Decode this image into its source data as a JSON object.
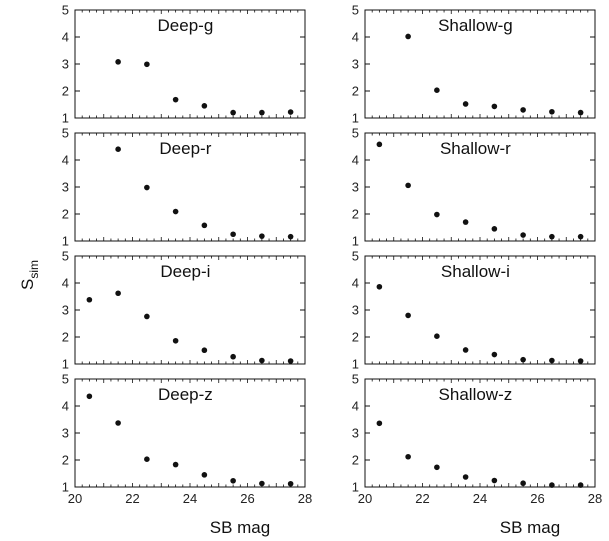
{
  "chart_data": [
    {
      "type": "scatter",
      "panel": "Deep-g",
      "x": [
        21.5,
        22.5,
        23.5,
        24.5,
        25.5,
        26.5,
        27.5
      ],
      "y": [
        3.08,
        2.99,
        1.68,
        1.45,
        1.2,
        1.2,
        1.22
      ],
      "xlim": [
        20,
        28
      ],
      "ylim": [
        1,
        5
      ]
    },
    {
      "type": "scatter",
      "panel": "Shallow-g",
      "x": [
        21.5,
        22.5,
        23.5,
        24.5,
        25.5,
        26.5,
        27.5
      ],
      "y": [
        4.02,
        2.03,
        1.52,
        1.43,
        1.3,
        1.23,
        1.2
      ],
      "xlim": [
        20,
        28
      ],
      "ylim": [
        1,
        5
      ]
    },
    {
      "type": "scatter",
      "panel": "Deep-r",
      "x": [
        21.5,
        22.5,
        23.5,
        24.5,
        25.5,
        26.5,
        27.5
      ],
      "y": [
        4.4,
        2.98,
        2.09,
        1.58,
        1.25,
        1.18,
        1.16
      ],
      "xlim": [
        20,
        28
      ],
      "ylim": [
        1,
        5
      ]
    },
    {
      "type": "scatter",
      "panel": "Shallow-r",
      "x": [
        20.5,
        21.5,
        22.5,
        23.5,
        24.5,
        25.5,
        26.5,
        27.5
      ],
      "y": [
        4.58,
        3.06,
        1.98,
        1.7,
        1.45,
        1.22,
        1.16,
        1.16
      ],
      "xlim": [
        20,
        28
      ],
      "ylim": [
        1,
        5
      ]
    },
    {
      "type": "scatter",
      "panel": "Deep-i",
      "x": [
        20.5,
        21.5,
        22.5,
        23.5,
        24.5,
        25.5,
        26.5,
        27.5
      ],
      "y": [
        3.38,
        3.62,
        2.76,
        1.86,
        1.51,
        1.27,
        1.13,
        1.11
      ],
      "xlim": [
        20,
        28
      ],
      "ylim": [
        1,
        5
      ]
    },
    {
      "type": "scatter",
      "panel": "Shallow-i",
      "x": [
        20.5,
        21.5,
        22.5,
        23.5,
        24.5,
        25.5,
        26.5,
        27.5
      ],
      "y": [
        3.86,
        2.8,
        2.03,
        1.52,
        1.35,
        1.16,
        1.13,
        1.11
      ],
      "xlim": [
        20,
        28
      ],
      "ylim": [
        1,
        5
      ]
    },
    {
      "type": "scatter",
      "panel": "Deep-z",
      "x": [
        20.5,
        21.5,
        22.5,
        23.5,
        24.5,
        25.5,
        26.5,
        27.5
      ],
      "y": [
        4.36,
        3.37,
        2.03,
        1.83,
        1.45,
        1.23,
        1.13,
        1.12
      ],
      "xlim": [
        20,
        28
      ],
      "ylim": [
        1,
        5
      ]
    },
    {
      "type": "scatter",
      "panel": "Shallow-z",
      "x": [
        20.5,
        21.5,
        22.5,
        23.5,
        24.5,
        25.5,
        26.5,
        27.5
      ],
      "y": [
        3.36,
        2.12,
        1.73,
        1.37,
        1.24,
        1.14,
        1.07,
        1.07
      ],
      "xlim": [
        20,
        28
      ],
      "ylim": [
        1,
        5
      ]
    }
  ],
  "y_axis": {
    "main": "S",
    "sub": "sim"
  },
  "x_axis_titles": [
    "SB mag",
    "SB mag"
  ],
  "y_ticks": [
    "1",
    "2",
    "3",
    "4",
    "5"
  ],
  "x_ticks": [
    "20",
    "22",
    "24",
    "26",
    "28"
  ]
}
